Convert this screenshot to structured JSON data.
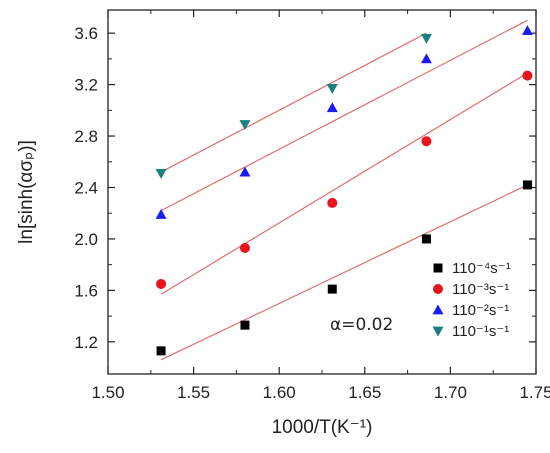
{
  "chart_data": {
    "type": "scatter",
    "xlabel": "1000/T(K⁻¹)",
    "ylabel": "ln[sinh(ασₚ)]",
    "xlim": [
      1.5,
      1.75
    ],
    "ylim": [
      0.95,
      3.78
    ],
    "xticks": [
      1.5,
      1.55,
      1.6,
      1.65,
      1.7,
      1.75
    ],
    "yticks": [
      1.2,
      1.6,
      2.0,
      2.4,
      2.8,
      3.2,
      3.6
    ],
    "xtick_labels": [
      "1.50",
      "1.55",
      "1.60",
      "1.65",
      "1.70",
      "1.75"
    ],
    "ytick_labels": [
      "1.2",
      "1.6",
      "2.0",
      "2.4",
      "2.8",
      "3.2",
      "3.6"
    ],
    "legend_position": "bottom-right",
    "grid": false,
    "annotation": "α=0.02",
    "fit_line_color": "#e06c6c",
    "series": [
      {
        "name": "110⁻⁴s⁻¹",
        "marker": "square",
        "color": "#000000",
        "x": [
          1.531,
          1.58,
          1.631,
          1.686,
          1.745
        ],
        "y": [
          1.13,
          1.33,
          1.61,
          2.0,
          2.42
        ],
        "fit": [
          [
            1.531,
            1.06
          ],
          [
            1.745,
            2.42
          ]
        ]
      },
      {
        "name": "110⁻³s⁻¹",
        "marker": "circle",
        "color": "#e8141c",
        "x": [
          1.531,
          1.58,
          1.631,
          1.686,
          1.745
        ],
        "y": [
          1.65,
          1.93,
          2.28,
          2.76,
          3.27
        ],
        "fit": [
          [
            1.531,
            1.57
          ],
          [
            1.745,
            3.29
          ]
        ]
      },
      {
        "name": "110⁻²s⁻¹",
        "marker": "triangle-up",
        "color": "#1c1cf0",
        "x": [
          1.531,
          1.58,
          1.631,
          1.686,
          1.745
        ],
        "y": [
          2.19,
          2.52,
          3.02,
          3.4,
          3.62
        ],
        "fit": [
          [
            1.531,
            2.22
          ],
          [
            1.745,
            3.7
          ]
        ]
      },
      {
        "name": "110⁻¹s⁻¹",
        "marker": "triangle-down",
        "color": "#1a7f7f",
        "x": [
          1.531,
          1.58,
          1.631,
          1.686
        ],
        "y": [
          2.51,
          2.89,
          3.17,
          3.56
        ],
        "fit": [
          [
            1.531,
            2.52
          ],
          [
            1.686,
            3.6
          ]
        ]
      }
    ]
  }
}
